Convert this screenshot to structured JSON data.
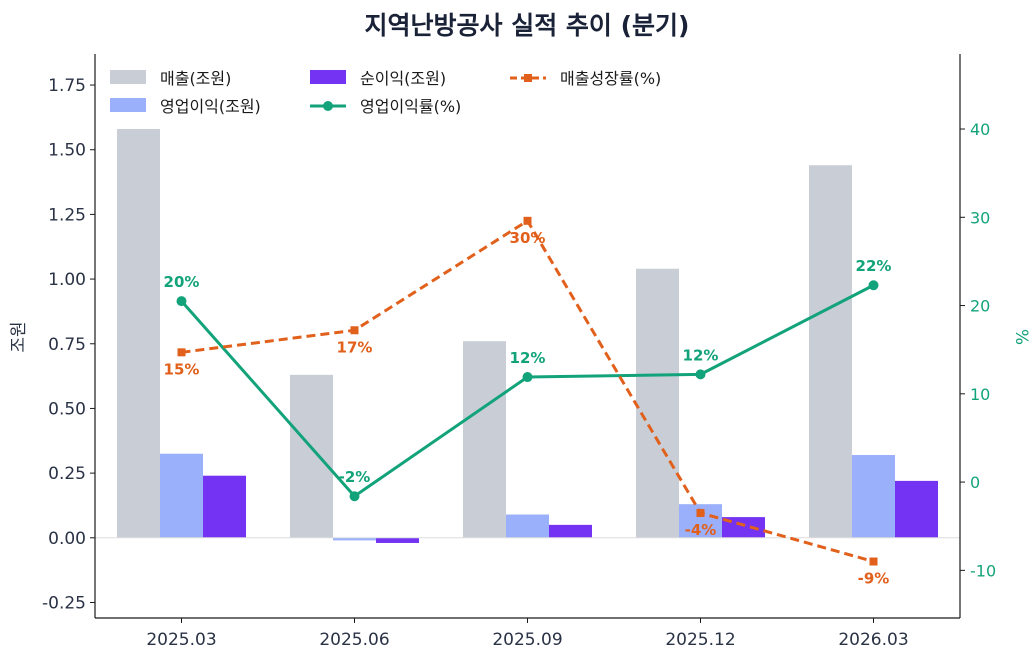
{
  "chart_data": {
    "type": "bar",
    "title": "지역난방공사 실적 추이 (분기)",
    "categories": [
      "2025.03",
      "2025.06",
      "2025.09",
      "2025.12",
      "2026.03"
    ],
    "ylabel_left": "조원",
    "ylabel_right": "%",
    "ylim_left": [
      -0.31,
      1.87
    ],
    "ylim_right": [
      -15.4,
      48.5
    ],
    "yticks_left": [
      "-0.25",
      "0.00",
      "0.25",
      "0.50",
      "0.75",
      "1.00",
      "1.25",
      "1.50",
      "1.75"
    ],
    "yticks_right": [
      "-10",
      "0",
      "10",
      "20",
      "30",
      "40"
    ],
    "grid": false,
    "legend_position": "top-left",
    "bar_series": [
      {
        "name": "매출(조원)",
        "color": "#c8cdd6",
        "values": [
          1.58,
          0.63,
          0.76,
          1.04,
          1.44
        ]
      },
      {
        "name": "영업이익(조원)",
        "color": "#9bb0fb",
        "values": [
          0.325,
          -0.01,
          0.09,
          0.13,
          0.32
        ]
      },
      {
        "name": "순이익(조원)",
        "color": "#7433f2",
        "values": [
          0.24,
          -0.02,
          0.05,
          0.08,
          0.22
        ]
      }
    ],
    "line_series": [
      {
        "name": "영업이익률(%)",
        "color": "#13a37a",
        "style": "solid",
        "marker": "circle",
        "axis": "right",
        "values": [
          20.5,
          -1.6,
          11.9,
          12.2,
          22.3
        ],
        "labels": [
          "20%",
          "-2%",
          "12%",
          "12%",
          "22%"
        ]
      },
      {
        "name": "매출성장률(%)",
        "color": "#e1601b",
        "style": "dashed",
        "marker": "square",
        "axis": "right",
        "values": [
          14.7,
          17.2,
          29.6,
          -3.5,
          -9.0
        ],
        "labels": [
          "15%",
          "17%",
          "30%",
          "-4%",
          "-9%"
        ]
      }
    ]
  }
}
